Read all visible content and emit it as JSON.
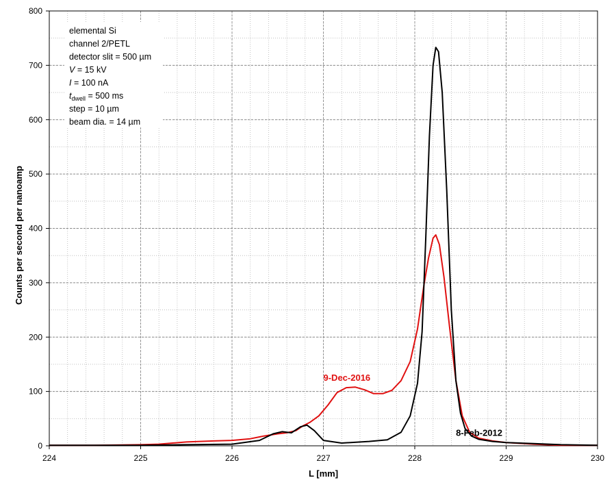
{
  "chart_data": {
    "type": "line",
    "title": "",
    "xlabel": "L [mm]",
    "ylabel": "Counts per second per nanoamp",
    "xlim": [
      224,
      230
    ],
    "ylim": [
      0,
      800
    ],
    "x_major_ticks": [
      224,
      225,
      226,
      227,
      228,
      229,
      230
    ],
    "x_minor_step": 0.2,
    "y_ticks": [
      0,
      100,
      200,
      300,
      400,
      500,
      600,
      700,
      800
    ],
    "y_minor_step": 50,
    "grid": true,
    "legend": "none (series labelled directly)",
    "annotation": {
      "lines": [
        {
          "text": "elemental Si"
        },
        {
          "text": "channel 2/PETL"
        },
        {
          "text": "detector slit = 500 µm"
        },
        {
          "italic": "V",
          "text": " = 15 kV"
        },
        {
          "italic": "I",
          "text": " = 100 nA"
        },
        {
          "italic": "t",
          "sub": "dwell",
          "text": " = 500 ms"
        },
        {
          "text": "step = 10 µm"
        },
        {
          "text": "beam dia. = 14 µm"
        }
      ]
    },
    "series": [
      {
        "name": "9-Dec-2016",
        "color": "#e01010",
        "x": [
          224.0,
          224.5,
          225.0,
          225.2,
          225.5,
          225.8,
          226.0,
          226.2,
          226.35,
          226.5,
          226.6,
          226.7,
          226.78,
          226.85,
          226.95,
          227.05,
          227.15,
          227.25,
          227.35,
          227.45,
          227.55,
          227.65,
          227.75,
          227.85,
          227.95,
          228.03,
          228.1,
          228.15,
          228.2,
          228.23,
          228.27,
          228.32,
          228.38,
          228.45,
          228.52,
          228.6,
          228.7,
          228.85,
          229.0,
          229.3,
          229.6,
          230.0
        ],
        "values": [
          1,
          1,
          2,
          3,
          7,
          9,
          10,
          13,
          18,
          22,
          24,
          28,
          37,
          43,
          55,
          75,
          98,
          107,
          108,
          103,
          96,
          96,
          102,
          120,
          155,
          215,
          295,
          345,
          382,
          388,
          370,
          310,
          220,
          120,
          55,
          25,
          14,
          9,
          6,
          3,
          1,
          1
        ]
      },
      {
        "name": "8-Feb-2012",
        "color": "#000000",
        "x": [
          224.0,
          225.0,
          225.5,
          226.0,
          226.3,
          226.45,
          226.55,
          226.65,
          226.75,
          226.82,
          226.9,
          227.0,
          227.2,
          227.5,
          227.7,
          227.85,
          227.95,
          228.03,
          228.08,
          228.12,
          228.16,
          228.2,
          228.23,
          228.26,
          228.3,
          228.35,
          228.4,
          228.45,
          228.5,
          228.55,
          228.62,
          228.7,
          228.85,
          229.0,
          229.3,
          229.6,
          230.0
        ],
        "values": [
          1,
          1,
          2,
          3,
          10,
          22,
          26,
          24,
          35,
          38,
          28,
          10,
          5,
          8,
          11,
          25,
          55,
          115,
          210,
          380,
          570,
          700,
          733,
          725,
          650,
          470,
          250,
          120,
          60,
          32,
          18,
          12,
          8,
          6,
          4,
          2,
          1
        ]
      }
    ],
    "series_label_positions": [
      {
        "series": "9-Dec-2016",
        "x": 227.0,
        "y": 120
      },
      {
        "series": "8-Feb-2012",
        "x": 228.45,
        "y": 18
      }
    ]
  }
}
